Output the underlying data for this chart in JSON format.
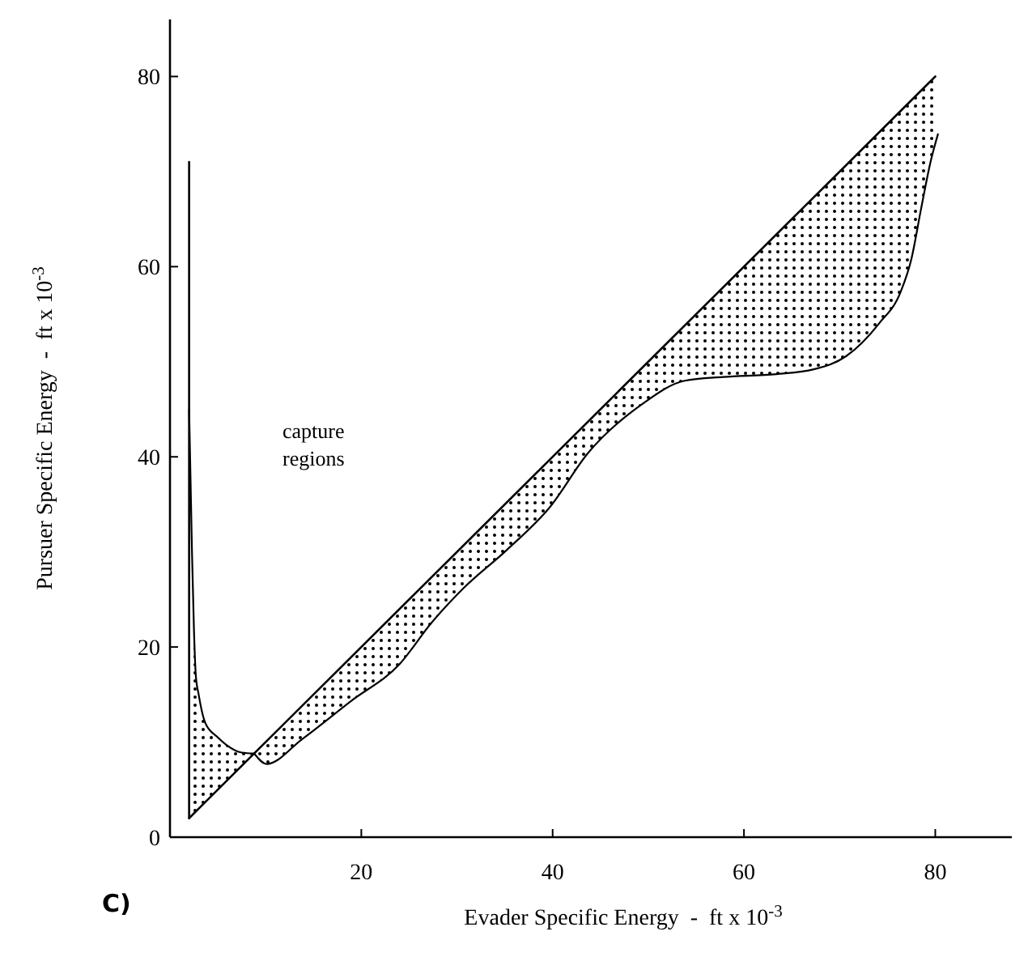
{
  "chart_data": {
    "type": "line",
    "xlabel": "Evader Specific Energy  -  ft x 10$^{-3}$",
    "ylabel": "Pursuer Specific Energy  -  ft x 10$^{-3}$",
    "annotations": [
      "capture regions",
      "C)"
    ],
    "xlim": [
      0,
      88
    ],
    "ylim": [
      0,
      86
    ],
    "xticks": [
      20,
      40,
      60,
      80
    ],
    "yticks": [
      0,
      20,
      40,
      60,
      80
    ],
    "series": [
      {
        "color": "#000000",
        "x": [
          2,
          2.3,
          2.5,
          2.7,
          3,
          3.7,
          5,
          5.9,
          7.5,
          8.8
        ],
        "values": [
          45,
          30,
          22,
          17,
          15,
          12,
          10.5,
          9.7,
          8.9,
          8.8
        ],
        "lower": [
          2,
          2.3,
          2.5,
          2.7,
          3,
          3.7,
          5,
          5.9,
          7.5,
          8.8
        ],
        "upper": [
          45,
          30,
          22,
          17,
          15,
          12,
          10.5,
          9.7,
          8.9,
          8.8
        ]
      },
      {
        "color": "#000000",
        "x": [
          8.8,
          10.1,
          13.8,
          18.9,
          24,
          27.3,
          30.7,
          35.2,
          39.7,
          43.7,
          49.3,
          53.8,
          57.8,
          63.4,
          67.3,
          70.7,
          74.1,
          76.4,
          77.5,
          78.5,
          79.5,
          80.3
        ],
        "values": [
          8.8,
          7.7,
          10.3,
          14.3,
          18.2,
          22.5,
          26.2,
          30.2,
          34.7,
          40.4,
          45.5,
          48,
          48.4,
          48.7,
          49.2,
          50.6,
          54,
          57.4,
          60.8,
          66,
          71,
          74
        ],
        "lower": [
          8.8,
          7.7,
          10.3,
          14.3,
          18.2,
          22.5,
          26.2,
          30.2,
          34.7,
          40.4,
          45.5,
          48,
          48.4,
          48.7,
          49.2,
          50.6,
          54,
          57.4,
          60.8,
          66,
          71,
          74
        ],
        "upper": [
          8.8,
          10.1,
          13.8,
          18.9,
          24,
          27.3,
          30.7,
          35.2,
          39.7,
          43.7,
          49.3,
          53.8,
          57.8,
          63.4,
          67.3,
          70.7,
          74.1,
          76.4,
          77.5,
          78.5,
          79.5,
          80
        ]
      },
      {
        "type": "line",
        "color": "#000000",
        "x": [
          2,
          80
        ],
        "values": [
          2,
          80
        ]
      },
      {
        "type": "line",
        "color": "#000000",
        "x": [
          2,
          2
        ],
        "values": [
          2,
          71
        ]
      }
    ]
  }
}
